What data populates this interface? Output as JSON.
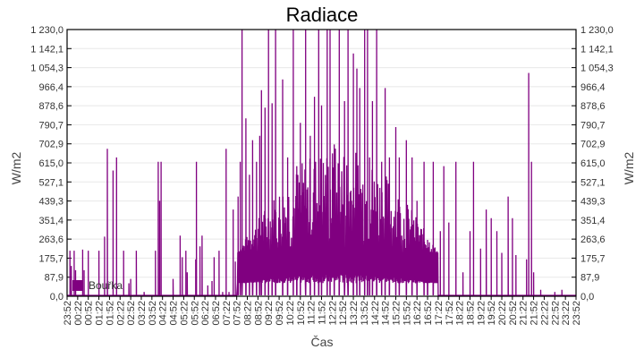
{
  "chart_data": {
    "type": "line",
    "title": "Radiace",
    "xlabel": "Čas",
    "ylabel": "W/m2",
    "ylim": [
      0,
      1230
    ],
    "y_ticks": [
      "0,0",
      "87,9",
      "175,7",
      "263,6",
      "351,4",
      "439,3",
      "527,1",
      "615,0",
      "702,9",
      "790,7",
      "878,6",
      "966,4",
      "1 054,3",
      "1 142,1",
      "1 230,0"
    ],
    "x_ticks": [
      "23:52",
      "00:22",
      "00:52",
      "01:22",
      "01:52",
      "02:22",
      "02:52",
      "03:22",
      "03:52",
      "04:22",
      "04:52",
      "05:22",
      "05:52",
      "06:22",
      "06:52",
      "07:22",
      "07:52",
      "08:22",
      "08:52",
      "09:22",
      "09:52",
      "10:22",
      "10:52",
      "11:22",
      "11:52",
      "12:22",
      "12:52",
      "13:22",
      "13:52",
      "14:22",
      "14:52",
      "15:22",
      "15:52",
      "16:22",
      "16:52",
      "17:22",
      "17:52",
      "18:22",
      "18:52",
      "19:22",
      "19:52",
      "20:22",
      "20:52",
      "21:22",
      "21:52",
      "22:22",
      "22:52",
      "23:22",
      "23:52"
    ],
    "grid": true,
    "legend_position": "bottom-left inside",
    "series": [
      {
        "name": "Bouřka",
        "color": "#800080",
        "spikes_minutes_values": [
          [
            8,
            210
          ],
          [
            12,
            140
          ],
          [
            20,
            210
          ],
          [
            24,
            120
          ],
          [
            44,
            215
          ],
          [
            48,
            120
          ],
          [
            60,
            210
          ],
          [
            90,
            210
          ],
          [
            106,
            275
          ],
          [
            114,
            680
          ],
          [
            130,
            580
          ],
          [
            140,
            640
          ],
          [
            160,
            210
          ],
          [
            175,
            60
          ],
          [
            180,
            80
          ],
          [
            196,
            210
          ],
          [
            218,
            20
          ],
          [
            250,
            210
          ],
          [
            258,
            620
          ],
          [
            262,
            440
          ],
          [
            266,
            620
          ],
          [
            300,
            80
          ],
          [
            320,
            280
          ],
          [
            326,
            180
          ],
          [
            336,
            210
          ],
          [
            340,
            110
          ],
          [
            364,
            170
          ],
          [
            366,
            620
          ],
          [
            376,
            230
          ],
          [
            382,
            280
          ],
          [
            398,
            50
          ],
          [
            410,
            70
          ],
          [
            416,
            180
          ],
          [
            430,
            210
          ],
          [
            440,
            20
          ],
          [
            450,
            680
          ],
          [
            458,
            20
          ],
          [
            470,
            400
          ],
          [
            476,
            160
          ],
          [
            484,
            460
          ],
          [
            490,
            620
          ],
          [
            495,
            1230
          ],
          [
            506,
            820
          ],
          [
            516,
            560
          ],
          [
            525,
            720
          ],
          [
            536,
            620
          ],
          [
            545,
            740
          ],
          [
            550,
            950
          ],
          [
            560,
            870
          ],
          [
            570,
            1230
          ],
          [
            580,
            890
          ],
          [
            590,
            1230
          ],
          [
            610,
            1000
          ],
          [
            624,
            640
          ],
          [
            640,
            1230
          ],
          [
            650,
            600
          ],
          [
            660,
            800
          ],
          [
            675,
            1230
          ],
          [
            688,
            740
          ],
          [
            700,
            920
          ],
          [
            712,
            1230
          ],
          [
            720,
            880
          ],
          [
            736,
            1230
          ],
          [
            744,
            1230
          ],
          [
            756,
            700
          ],
          [
            770,
            1230
          ],
          [
            785,
            900
          ],
          [
            795,
            1230
          ],
          [
            810,
            1120
          ],
          [
            820,
            1050
          ],
          [
            828,
            960
          ],
          [
            842,
            1230
          ],
          [
            850,
            1230
          ],
          [
            856,
            640
          ],
          [
            864,
            900
          ],
          [
            876,
            1230
          ],
          [
            890,
            620
          ],
          [
            900,
            960
          ],
          [
            912,
            640
          ],
          [
            930,
            780
          ],
          [
            940,
            640
          ],
          [
            960,
            720
          ],
          [
            976,
            640
          ],
          [
            990,
            440
          ],
          [
            1010,
            620
          ],
          [
            1020,
            260
          ],
          [
            1036,
            620
          ],
          [
            1056,
            300
          ],
          [
            1066,
            600
          ],
          [
            1080,
            340
          ],
          [
            1100,
            620
          ],
          [
            1120,
            110
          ],
          [
            1140,
            300
          ],
          [
            1150,
            620
          ],
          [
            1170,
            220
          ],
          [
            1186,
            400
          ],
          [
            1200,
            360
          ],
          [
            1216,
            300
          ],
          [
            1230,
            200
          ],
          [
            1248,
            460
          ],
          [
            1260,
            360
          ],
          [
            1270,
            190
          ],
          [
            1300,
            170
          ],
          [
            1306,
            1030
          ],
          [
            1314,
            620
          ],
          [
            1320,
            110
          ],
          [
            1340,
            30
          ],
          [
            1380,
            20
          ],
          [
            1400,
            30
          ]
        ],
        "daytime_band_minutes": [
          480,
          1050
        ]
      }
    ]
  }
}
